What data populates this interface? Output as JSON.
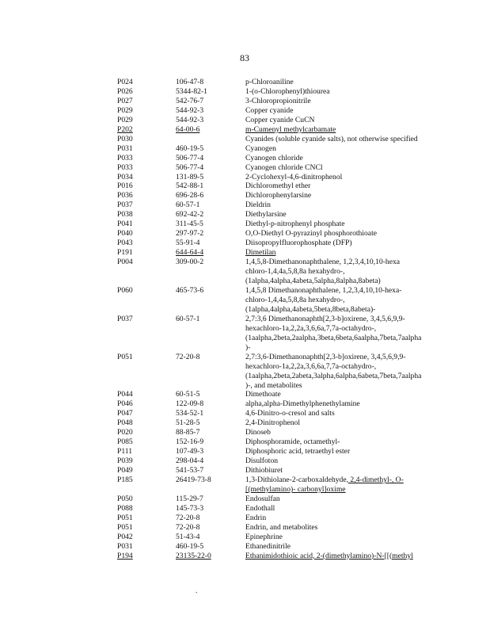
{
  "page_number": "83",
  "rows": [
    {
      "code": "P024",
      "cas": "106-47-8",
      "name": "p-Chloroaniline"
    },
    {
      "code": "P026",
      "cas": "5344-82-1",
      "name": "1-(o-Chlorophenyl)thiourea"
    },
    {
      "code": "P027",
      "cas": "542-76-7",
      "name": "3-Chloropropionitrile"
    },
    {
      "code": "P029",
      "cas": "544-92-3",
      "name": "Copper cyanide"
    },
    {
      "code": "P029",
      "cas": "544-92-3",
      "name": "Copper cyanide CuCN"
    },
    {
      "code": "P202",
      "cas": "64-00-6",
      "name": "m-Cumenyl methylcarbamate",
      "underline": "all"
    },
    {
      "code": "P030",
      "cas": "",
      "name": "Cyanides (soluble cyanide salts), not otherwise specified"
    },
    {
      "code": "P031",
      "cas": "460-19-5",
      "name": "Cyanogen"
    },
    {
      "code": "P033",
      "cas": "506-77-4",
      "name": "Cyanogen chloride"
    },
    {
      "code": "P033",
      "cas": "506-77-4",
      "name": "Cyanogen chloride CNCl"
    },
    {
      "code": "P034",
      "cas": "131-89-5",
      "name": "2-Cyclohexyl-4,6-dinitrophenol"
    },
    {
      "code": "P016",
      "cas": "542-88-1",
      "name": "Dichloromethyl ether"
    },
    {
      "code": "P036",
      "cas": "696-28-6",
      "name": "Dichlorophenylarsine"
    },
    {
      "code": "P037",
      "cas": "60-57-1",
      "name": "Dieldrin"
    },
    {
      "code": "P038",
      "cas": "692-42-2",
      "name": "Diethylarsine"
    },
    {
      "code": "P041",
      "cas": "311-45-5",
      "name": "Diethyl-p-nitrophenyl phosphate"
    },
    {
      "code": "P040",
      "cas": "297-97-2",
      "name": "O,O-Diethyl O-pyrazinyl phosphorothioate"
    },
    {
      "code": "P043",
      "cas": "55-91-4",
      "name": "Diisopropylfluorophosphate (DFP)"
    },
    {
      "code": "P191",
      "cas": "644-64-4",
      "name": "Dimetilan",
      "underline": "cas-name"
    },
    {
      "code": "P004",
      "cas": "309-00-2",
      "name": "1,4,5,8-Dimethanonaphthalene, 1,2,3,4,10,10-hexa\nchloro-1,4,4a,5,8,8a hexahydro-,\n(1alpha,4alpha,4abeta,5alpha,8alpha,8abeta)"
    },
    {
      "code": "P060",
      "cas": "465-73-6",
      "name": "1,4,5,8 Dimethanonaphthalene, 1,2,3,4,10,10-hexa-\nchloro-1,4,4a,5,8,8a hexahydro-,\n(1alpha,4alpha,4abeta,5beta,8beta,8abeta)-"
    },
    {
      "code": "P037",
      "cas": "60-57-1",
      "name": "2,7:3,6 Dimethanonaphth[2,3-b]oxirene, 3,4,5,6,9,9-\nhexachloro-1a,2,2a,3,6,6a,7,7a-octahydro-,\n(1aalpha,2beta,2aalpha,3beta,6beta,6aalpha,7beta,7aalpha\n)-"
    },
    {
      "code": "P051",
      "cas": "72-20-8",
      "name": "2,7:3,6-Dimethanonaphth[2,3-b]oxirene, 3,4,5,6,9,9-\nhexachloro-1a,2,2a,3,6,6a,7,7a-octahydro-,\n(1aalpha,2beta,2abeta,3alpha,6alpha,6abeta,7beta,7aalpha\n)-, and metabolites"
    },
    {
      "code": "P044",
      "cas": "60-51-5",
      "name": "Dimethoate"
    },
    {
      "code": "P046",
      "cas": "122-09-8",
      "name": "alpha,alpha-Dimethylphenethylamine"
    },
    {
      "code": "P047",
      "cas": "534-52-1",
      "name": "4,6-Dinitro-o-cresol and salts"
    },
    {
      "code": "P048",
      "cas": "51-28-5",
      "name": "2,4-Dinitrophenol"
    },
    {
      "code": "P020",
      "cas": "88-85-7",
      "name": "Dinoseb"
    },
    {
      "code": "P085",
      "cas": "152-16-9",
      "name": "Diphosphoramide, octamethyl-"
    },
    {
      "code": "P111",
      "cas": "107-49-3",
      "name": "Diphosphoric acid, tetraethyl ester"
    },
    {
      "code": "P039",
      "cas": "298-04-4",
      "name": "Disulfoton"
    },
    {
      "code": "P049",
      "cas": "541-53-7",
      "name": "Dithiobiuret"
    },
    {
      "code": "P185",
      "cas": "26419-73-8",
      "name": "1,3-Dithiolane-2-carboxaldehyde,",
      "name_u": " 2,4-dimethyl-, O-\n[(methylamino)- carbonyl]oxime"
    },
    {
      "code": "P050",
      "cas": "115-29-7",
      "name": "Endosulfan"
    },
    {
      "code": "P088",
      "cas": "145-73-3",
      "name": "Endothall"
    },
    {
      "code": "P051",
      "cas": "72-20-8",
      "name": "Endrin"
    },
    {
      "code": "P051",
      "cas": "72-20-8",
      "name": "Endrin, and metabolites"
    },
    {
      "code": "P042",
      "cas": "51-43-4",
      "name": "Epinephrine"
    },
    {
      "code": "P031",
      "cas": "460-19-5",
      "name": "Ethanedinitrile"
    },
    {
      "code": "P194",
      "cas": "23135-22-0",
      "name": "Ethanimidothioic acid, 2-(dimethylamino)-N-[[(methyl",
      "underline": "all"
    }
  ]
}
